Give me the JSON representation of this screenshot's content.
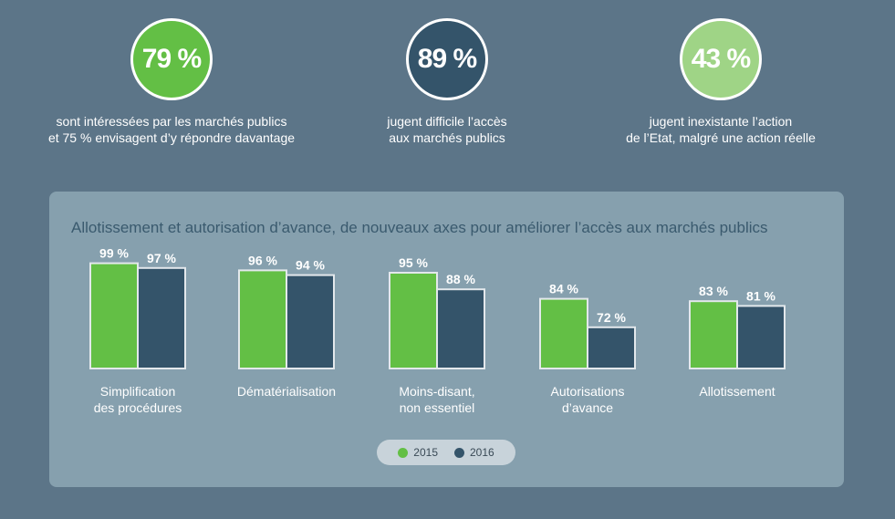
{
  "stats": [
    {
      "value": "79 %",
      "line1": "sont intéressées par les marchés publics",
      "line2": "et 75 % envisagent d’y répondre davantage",
      "color": "#63bf45"
    },
    {
      "value": "89 %",
      "line1": "jugent difficile l’accès",
      "line2": "aux marchés publics",
      "color": "#34546a"
    },
    {
      "value": "43 %",
      "line1": "jugent inexistante l’action",
      "line2": "de l’Etat, malgré une action réelle",
      "color": "#9fd486"
    }
  ],
  "panel": {
    "title": "Allotissement et autorisation d’avance, de nouveaux axes pour améliorer l’accès aux marchés publics"
  },
  "chart_data": {
    "type": "bar",
    "title": "Allotissement et autorisation d’avance, de nouveaux axes pour améliorer l’accès aux marchés publics",
    "categories": [
      [
        "Simplification",
        "des procédures"
      ],
      [
        "Dématérialisation"
      ],
      [
        "Moins-disant,",
        "non essentiel"
      ],
      [
        "Autorisations",
        "d’avance"
      ],
      [
        "Allotissement"
      ]
    ],
    "series": [
      {
        "name": "2015",
        "values": [
          99,
          96,
          95,
          84,
          83
        ],
        "labels": [
          "99 %",
          "96 %",
          "95 %",
          "84 %",
          "83 %"
        ],
        "color": "#63bf45"
      },
      {
        "name": "2016",
        "values": [
          97,
          94,
          88,
          72,
          81
        ],
        "labels": [
          "97 %",
          "94 %",
          "88 %",
          "72 %",
          "81 %"
        ],
        "color": "#34546a"
      }
    ],
    "ylim": [
      60,
      100
    ],
    "grid": false,
    "legend": "bottom-center"
  }
}
